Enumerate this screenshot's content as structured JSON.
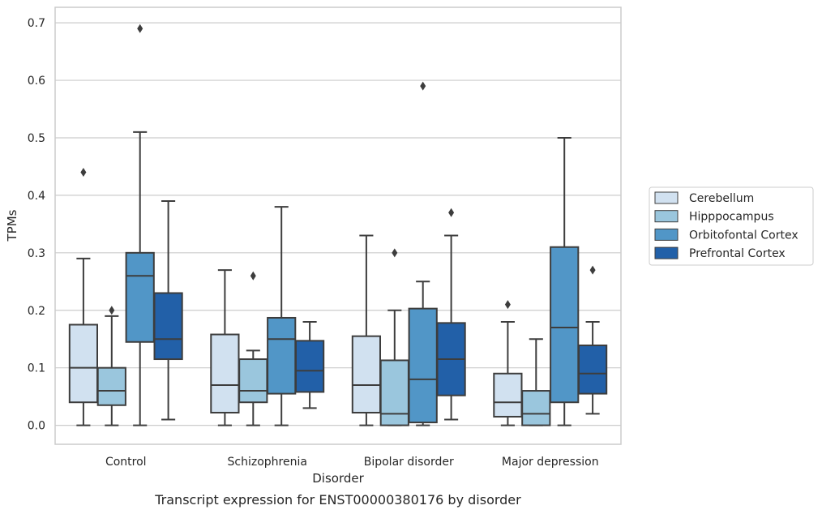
{
  "chart_data": {
    "type": "boxplot",
    "title": "",
    "caption": "Transcript expression for ENST00000380176 by disorder",
    "xlabel": "Disorder",
    "ylabel": "TPMs",
    "ylim": [
      -0.033,
      0.727
    ],
    "yticks": [
      0.0,
      0.1,
      0.2,
      0.3,
      0.4,
      0.5,
      0.6,
      0.7
    ],
    "ytick_labels": [
      "0.0",
      "0.1",
      "0.2",
      "0.3",
      "0.4",
      "0.5",
      "0.6",
      "0.7"
    ],
    "grid": "horizontal",
    "legend_position": "right",
    "categories": [
      "Control",
      "Schizophrenia",
      "Bipolar disorder",
      "Major depression"
    ],
    "series": [
      {
        "name": "Cerebellum",
        "color": "#d1e1f0",
        "boxes": [
          {
            "whislo": 0.0,
            "q1": 0.04,
            "med": 0.1,
            "q3": 0.175,
            "whishi": 0.29,
            "fliers": [
              0.44
            ]
          },
          {
            "whislo": 0.0,
            "q1": 0.022,
            "med": 0.07,
            "q3": 0.158,
            "whishi": 0.27,
            "fliers": []
          },
          {
            "whislo": 0.0,
            "q1": 0.022,
            "med": 0.07,
            "q3": 0.155,
            "whishi": 0.33,
            "fliers": []
          },
          {
            "whislo": 0.0,
            "q1": 0.015,
            "med": 0.04,
            "q3": 0.09,
            "whishi": 0.18,
            "fliers": [
              0.21
            ]
          }
        ]
      },
      {
        "name": "Hipppocampus",
        "color": "#9ac6dd",
        "boxes": [
          {
            "whislo": 0.0,
            "q1": 0.035,
            "med": 0.06,
            "q3": 0.1,
            "whishi": 0.19,
            "fliers": [
              0.2
            ]
          },
          {
            "whislo": 0.0,
            "q1": 0.04,
            "med": 0.06,
            "q3": 0.115,
            "whishi": 0.13,
            "fliers": [
              0.26
            ]
          },
          {
            "whislo": 0.0,
            "q1": 0.0,
            "med": 0.02,
            "q3": 0.113,
            "whishi": 0.2,
            "fliers": [
              0.3
            ]
          },
          {
            "whislo": 0.0,
            "q1": 0.0,
            "med": 0.02,
            "q3": 0.06,
            "whishi": 0.15,
            "fliers": []
          }
        ]
      },
      {
        "name": "Orbitofontal Cortex",
        "color": "#5196c7",
        "boxes": [
          {
            "whislo": 0.0,
            "q1": 0.145,
            "med": 0.26,
            "q3": 0.3,
            "whishi": 0.51,
            "fliers": [
              0.69
            ]
          },
          {
            "whislo": 0.0,
            "q1": 0.055,
            "med": 0.15,
            "q3": 0.187,
            "whishi": 0.38,
            "fliers": []
          },
          {
            "whislo": 0.0,
            "q1": 0.005,
            "med": 0.08,
            "q3": 0.203,
            "whishi": 0.25,
            "fliers": [
              0.59
            ]
          },
          {
            "whislo": 0.0,
            "q1": 0.04,
            "med": 0.17,
            "q3": 0.31,
            "whishi": 0.5,
            "fliers": []
          }
        ]
      },
      {
        "name": "Prefrontal Cortex",
        "color": "#2260a8",
        "boxes": [
          {
            "whislo": 0.01,
            "q1": 0.115,
            "med": 0.15,
            "q3": 0.23,
            "whishi": 0.39,
            "fliers": []
          },
          {
            "whislo": 0.03,
            "q1": 0.058,
            "med": 0.095,
            "q3": 0.147,
            "whishi": 0.18,
            "fliers": []
          },
          {
            "whislo": 0.01,
            "q1": 0.052,
            "med": 0.115,
            "q3": 0.178,
            "whishi": 0.33,
            "fliers": [
              0.37
            ]
          },
          {
            "whislo": 0.02,
            "q1": 0.055,
            "med": 0.09,
            "q3": 0.139,
            "whishi": 0.18,
            "fliers": [
              0.27
            ]
          }
        ]
      }
    ],
    "colors": {
      "grid": "#cccccc",
      "frame": "#cccccc",
      "line": "#3d3d3d",
      "text": "#262626"
    }
  }
}
